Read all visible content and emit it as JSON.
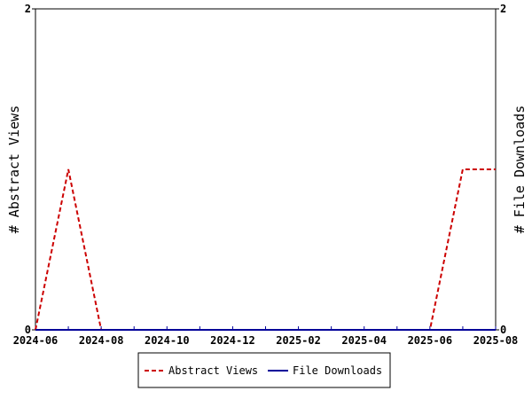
{
  "chart_data": {
    "type": "line",
    "x_tick_labels": [
      "2024-06",
      "2024-08",
      "2024-10",
      "2024-12",
      "2025-02",
      "2025-04",
      "2025-06",
      "2025-08"
    ],
    "x_range": [
      "2024-06",
      "2025-08"
    ],
    "y_left": {
      "label": "# Abstract Views",
      "range": [
        0,
        2
      ],
      "tick_labels": [
        "0",
        "2"
      ]
    },
    "y_right": {
      "label": "# File Downloads",
      "range": [
        0,
        2
      ],
      "tick_labels": [
        "0",
        "2"
      ]
    },
    "grid": false,
    "legend_position": "bottom",
    "series": [
      {
        "name": "Abstract Views",
        "axis": "left",
        "color": "#cc0000",
        "style": "dashed",
        "points": [
          {
            "x": "2024-06",
            "y": 0
          },
          {
            "x": "2024-07",
            "y": 1
          },
          {
            "x": "2024-08",
            "y": 0
          },
          {
            "x": "2024-09",
            "y": 0
          },
          {
            "x": "2024-10",
            "y": 0
          },
          {
            "x": "2024-11",
            "y": 0
          },
          {
            "x": "2024-12",
            "y": 0
          },
          {
            "x": "2025-01",
            "y": 0
          },
          {
            "x": "2025-02",
            "y": 0
          },
          {
            "x": "2025-03",
            "y": 0
          },
          {
            "x": "2025-04",
            "y": 0
          },
          {
            "x": "2025-05",
            "y": 0
          },
          {
            "x": "2025-06",
            "y": 0
          },
          {
            "x": "2025-07",
            "y": 1
          },
          {
            "x": "2025-08",
            "y": 1
          }
        ]
      },
      {
        "name": "File Downloads",
        "axis": "right",
        "color": "#000099",
        "style": "solid",
        "points": [
          {
            "x": "2024-06",
            "y": 0
          },
          {
            "x": "2024-07",
            "y": 0
          },
          {
            "x": "2024-08",
            "y": 0
          },
          {
            "x": "2024-09",
            "y": 0
          },
          {
            "x": "2024-10",
            "y": 0
          },
          {
            "x": "2024-11",
            "y": 0
          },
          {
            "x": "2024-12",
            "y": 0
          },
          {
            "x": "2025-01",
            "y": 0
          },
          {
            "x": "2025-02",
            "y": 0
          },
          {
            "x": "2025-03",
            "y": 0
          },
          {
            "x": "2025-04",
            "y": 0
          },
          {
            "x": "2025-05",
            "y": 0
          },
          {
            "x": "2025-06",
            "y": 0
          },
          {
            "x": "2025-07",
            "y": 0
          },
          {
            "x": "2025-08",
            "y": 0
          }
        ]
      }
    ]
  }
}
